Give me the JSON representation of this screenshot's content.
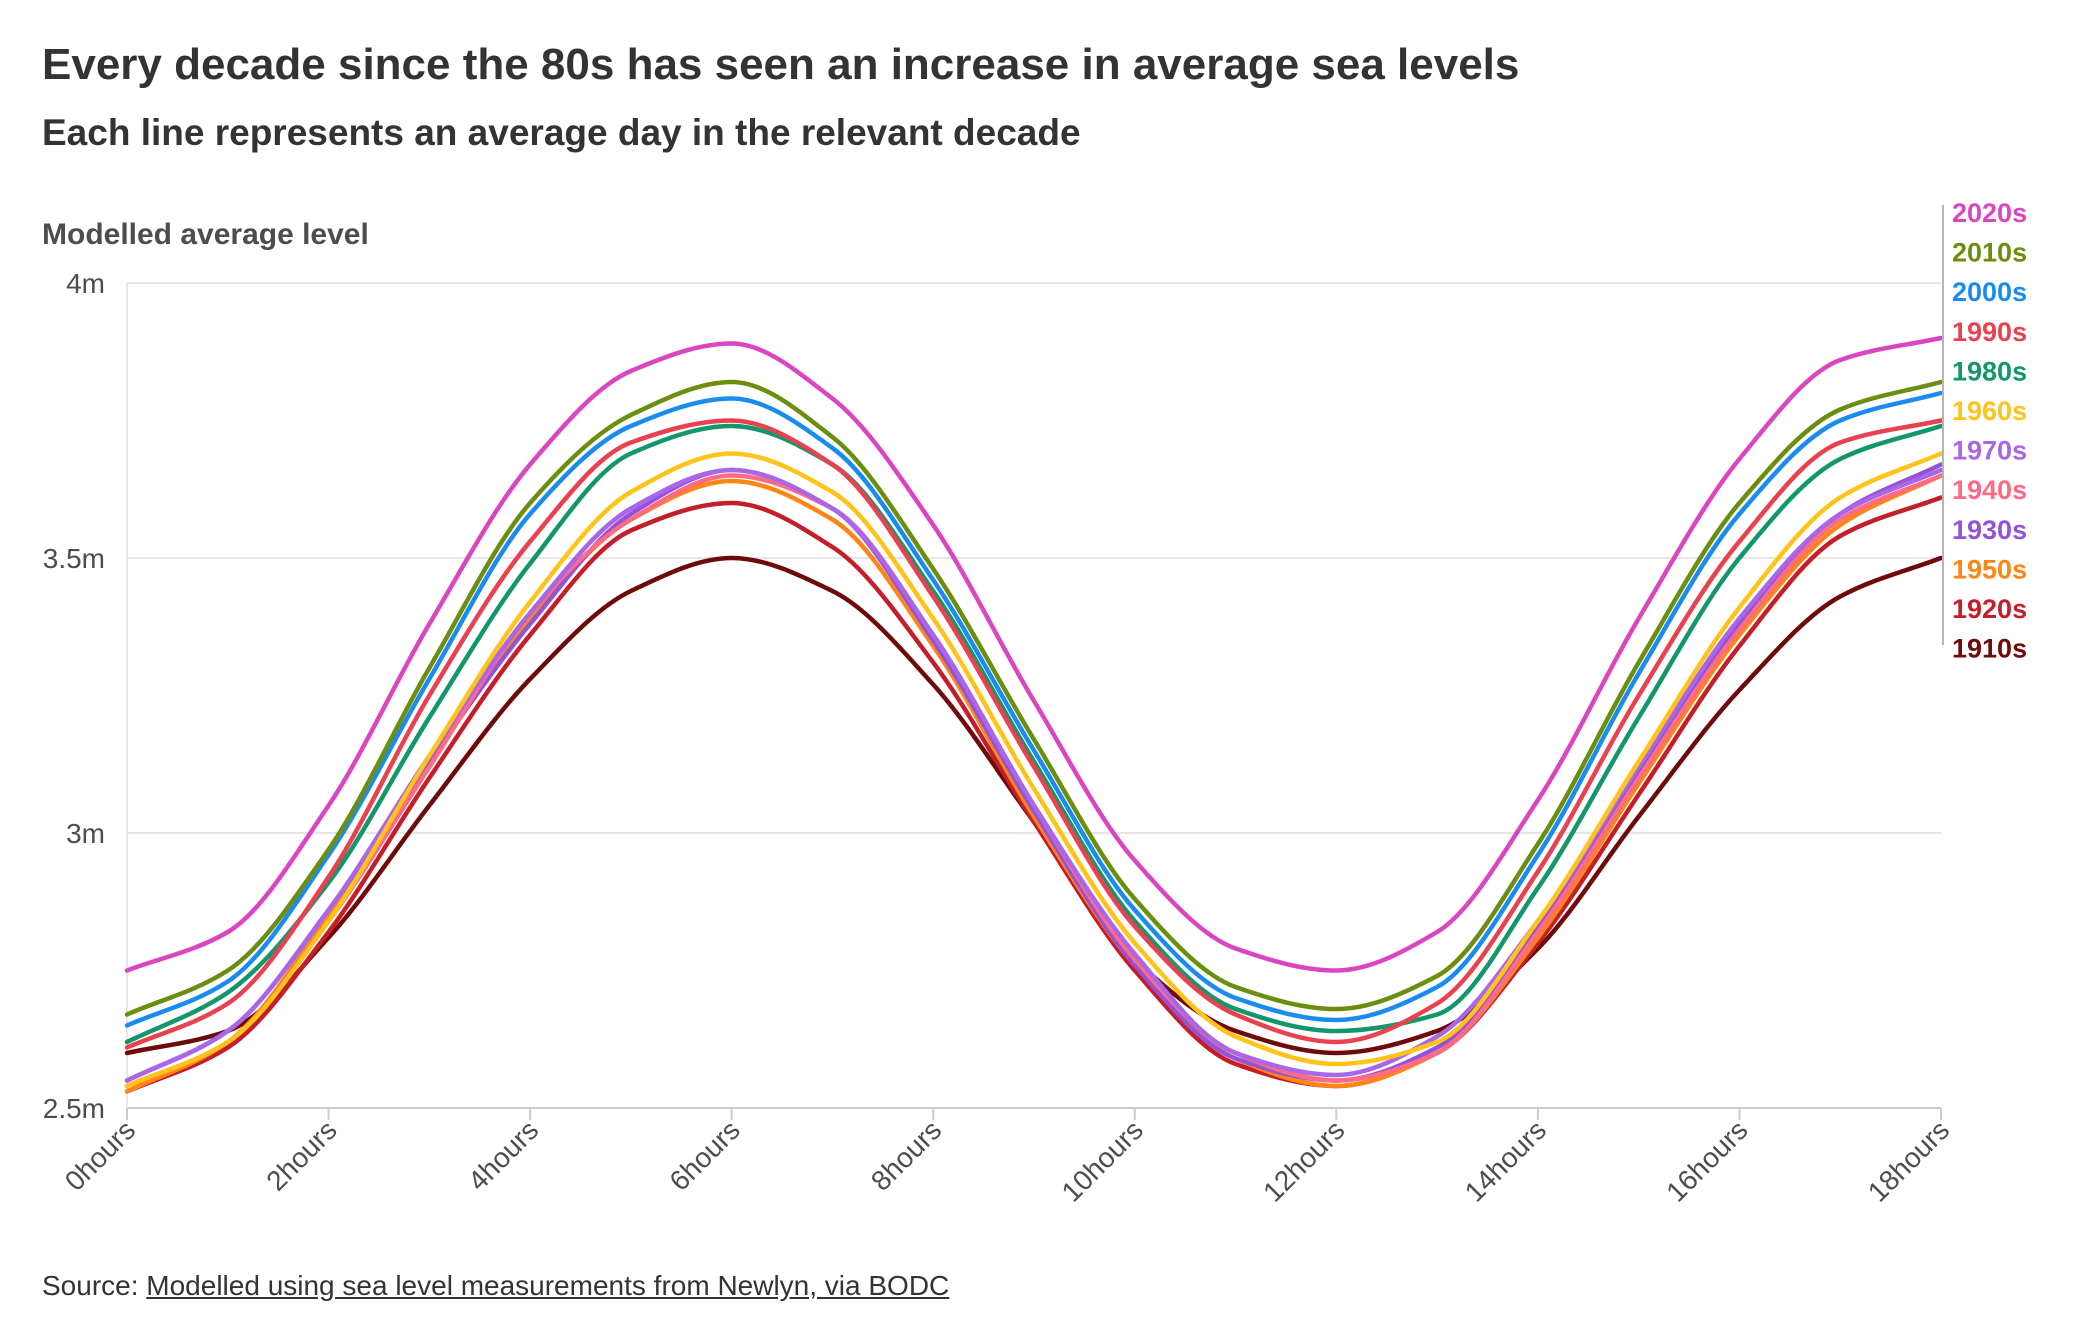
{
  "title": "Every decade since the 80s has seen an increase in average sea levels",
  "subtitle": "Each line represents an average day in the relevant decade",
  "source": {
    "prefix": "Source: ",
    "link_text": "Modelled using sea level measurements from Newlyn, via BODC"
  },
  "chart_data": {
    "type": "line",
    "title": "Every decade since the 80s has seen an increase in average sea levels",
    "subtitle": "Each line represents an average day in the relevant decade",
    "ylabel": "Modelled average level",
    "xlabel": "",
    "xlim": [
      0,
      18
    ],
    "ylim": [
      2.5,
      4
    ],
    "grid": true,
    "legend": "right",
    "x": [
      0,
      1,
      2,
      3,
      4,
      5,
      6,
      7,
      8,
      9,
      10,
      11,
      12,
      13,
      14,
      15,
      16,
      17,
      18
    ],
    "x_ticks": [
      {
        "value": 0,
        "label": "0hours"
      },
      {
        "value": 2,
        "label": "2hours"
      },
      {
        "value": 4,
        "label": "4hours"
      },
      {
        "value": 6,
        "label": "6hours"
      },
      {
        "value": 8,
        "label": "8hours"
      },
      {
        "value": 10,
        "label": "10hours"
      },
      {
        "value": 12,
        "label": "12hours"
      },
      {
        "value": 14,
        "label": "14hours"
      },
      {
        "value": 16,
        "label": "16hours"
      },
      {
        "value": 18,
        "label": "18hours"
      }
    ],
    "y_ticks": [
      {
        "value": 2.5,
        "label": "2.5m"
      },
      {
        "value": 3,
        "label": "3m"
      },
      {
        "value": 3.5,
        "label": "3.5m"
      },
      {
        "value": 4,
        "label": "4m"
      }
    ],
    "series": [
      {
        "name": "2020s",
        "color": "#d946c0",
        "values": [
          2.75,
          2.82,
          3.05,
          3.38,
          3.67,
          3.84,
          3.89,
          3.79,
          3.56,
          3.24,
          2.95,
          2.79,
          2.75,
          2.82,
          3.06,
          3.39,
          3.68,
          3.86,
          3.9
        ]
      },
      {
        "name": "2010s",
        "color": "#6b8e0f",
        "values": [
          2.67,
          2.75,
          2.97,
          3.3,
          3.6,
          3.76,
          3.82,
          3.72,
          3.48,
          3.17,
          2.88,
          2.72,
          2.68,
          2.74,
          2.98,
          3.31,
          3.6,
          3.77,
          3.82
        ]
      },
      {
        "name": "2000s",
        "color": "#1a8cf0",
        "values": [
          2.65,
          2.73,
          2.96,
          3.28,
          3.58,
          3.74,
          3.79,
          3.7,
          3.46,
          3.15,
          2.86,
          2.7,
          2.66,
          2.72,
          2.96,
          3.29,
          3.58,
          3.75,
          3.8
        ]
      },
      {
        "name": "1990s",
        "color": "#e8414f",
        "values": [
          2.61,
          2.69,
          2.92,
          3.25,
          3.53,
          3.71,
          3.75,
          3.67,
          3.43,
          3.12,
          2.83,
          2.67,
          2.62,
          2.69,
          2.93,
          3.25,
          3.53,
          3.71,
          3.75
        ]
      },
      {
        "name": "1980s",
        "color": "#12966a",
        "values": [
          2.62,
          2.71,
          2.91,
          3.21,
          3.49,
          3.69,
          3.74,
          3.67,
          3.44,
          3.13,
          2.84,
          2.68,
          2.64,
          2.67,
          2.9,
          3.21,
          3.5,
          3.68,
          3.74
        ]
      },
      {
        "name": "1960s",
        "color": "#ffc31a",
        "values": [
          2.54,
          2.62,
          2.84,
          3.14,
          3.42,
          3.62,
          3.69,
          3.62,
          3.39,
          3.08,
          2.8,
          2.63,
          2.58,
          2.62,
          2.84,
          3.13,
          3.41,
          3.61,
          3.69
        ]
      },
      {
        "name": "1970s",
        "color": "#a966e6",
        "values": [
          2.55,
          2.64,
          2.86,
          3.14,
          3.4,
          3.59,
          3.66,
          3.59,
          3.36,
          3.05,
          2.78,
          2.6,
          2.56,
          2.63,
          2.84,
          3.12,
          3.39,
          3.58,
          3.66
        ]
      },
      {
        "name": "1940s",
        "color": "#ff6b85",
        "values": [
          2.54,
          2.62,
          2.84,
          3.12,
          3.4,
          3.57,
          3.65,
          3.59,
          3.36,
          3.05,
          2.77,
          2.6,
          2.55,
          2.6,
          2.82,
          3.1,
          3.37,
          3.57,
          3.65
        ]
      },
      {
        "name": "1930s",
        "color": "#9452d9",
        "values": [
          2.55,
          2.64,
          2.86,
          3.13,
          3.38,
          3.58,
          3.66,
          3.59,
          3.35,
          3.04,
          2.76,
          2.59,
          2.55,
          2.61,
          2.83,
          3.11,
          3.38,
          3.58,
          3.67
        ]
      },
      {
        "name": "1950s",
        "color": "#ff8614",
        "values": [
          2.53,
          2.62,
          2.85,
          3.13,
          3.39,
          3.57,
          3.64,
          3.57,
          3.34,
          3.03,
          2.76,
          2.59,
          2.54,
          2.6,
          2.81,
          3.09,
          3.36,
          3.56,
          3.65
        ]
      },
      {
        "name": "1920s",
        "color": "#c41e2a",
        "values": [
          2.53,
          2.61,
          2.82,
          3.1,
          3.36,
          3.55,
          3.6,
          3.52,
          3.31,
          3.02,
          2.75,
          2.58,
          2.54,
          2.6,
          2.8,
          3.07,
          3.34,
          3.54,
          3.61
        ]
      },
      {
        "name": "1910s",
        "color": "#6e0a0a",
        "values": [
          2.6,
          2.64,
          2.81,
          3.05,
          3.28,
          3.44,
          3.5,
          3.44,
          3.27,
          3.02,
          2.77,
          2.64,
          2.6,
          2.64,
          2.79,
          3.03,
          3.26,
          3.43,
          3.5
        ]
      }
    ]
  }
}
